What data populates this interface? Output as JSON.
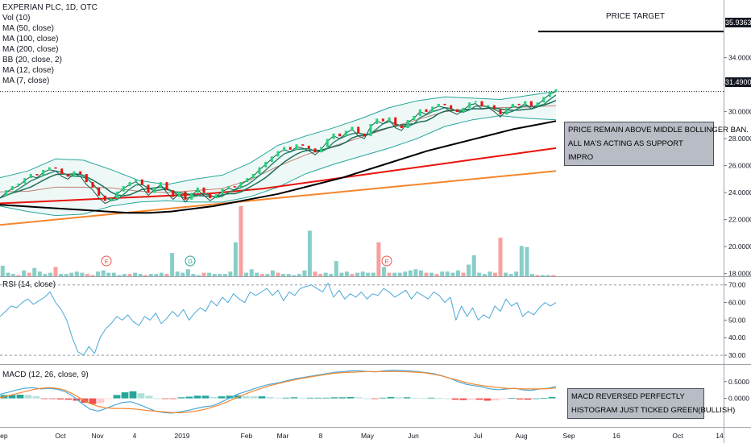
{
  "legend": {
    "title": "EXPERIAN PLC, 1D, OTC",
    "items": [
      "Vol (10)",
      "MA (50, close)",
      "MA (100, close)",
      "MA (200, close)",
      "BB (20, close, 2)",
      "MA (12, close)",
      "MA (7, close)"
    ]
  },
  "annotations": {
    "price_target_label": "PRICE TARGET",
    "main_note": [
      "PRICE REMAIN ABOVE MIDDLE BOLLINGER BAN.",
      "ALL MA'S ACTING AS SUPPORT",
      "IMPRO"
    ],
    "macd_note": [
      "MACD REVERSED PERFECTLY",
      "HISTOGRAM JUST TICKED GREEN(BULLISH)"
    ]
  },
  "price_tags": {
    "target": "35.9363",
    "last": "31.4900"
  },
  "colors": {
    "up": "#26a69a",
    "down": "#ef5350",
    "ma50": "#000000",
    "ma100": "#e8140c",
    "ma200": "#f5862d",
    "bb": "#26a69a",
    "ma12": "#1e6e5a",
    "ma7": "#b06060",
    "rsi": "#4aa8d8",
    "macd": "#4aa8d8",
    "signal": "#f5862d"
  },
  "chart_data": [
    {
      "type": "line",
      "name": "price",
      "x_ticks": [
        "Sep",
        "Oct",
        "Nov",
        "4",
        "2019",
        "Feb",
        "Mar",
        "8",
        "May",
        "Jun",
        "Jul",
        "Aug",
        "Sep",
        "16",
        "Oct",
        "14"
      ],
      "y_ticks": [
        "18.0000",
        "20.0000",
        "22.0000",
        "24.0000",
        "26.0000",
        "28.0000",
        "30.0000",
        "32.0000",
        "34.0000"
      ],
      "ylim": [
        17.8,
        37.2
      ],
      "close": [
        23.6,
        24.0,
        24.3,
        24.5,
        24.9,
        25.2,
        25.1,
        25.5,
        25.7,
        25.6,
        25.2,
        25.0,
        25.4,
        25.2,
        24.6,
        24.2,
        23.6,
        23.2,
        23.4,
        23.9,
        24.3,
        24.6,
        24.8,
        24.4,
        23.8,
        24.2,
        24.6,
        24.0,
        23.5,
        23.9,
        23.3,
        23.8,
        24.2,
        23.8,
        23.4,
        23.7,
        24.1,
        24.3,
        24.2,
        24.6,
        24.9,
        25.2,
        25.7,
        26.1,
        26.5,
        26.9,
        27.2,
        27.0,
        27.4,
        27.3,
        27.1,
        26.8,
        27.2,
        27.8,
        28.2,
        28.0,
        28.4,
        28.7,
        28.2,
        28.0,
        28.9,
        29.3,
        29.1,
        29.4,
        28.8,
        28.6,
        29.2,
        29.5,
        30.0,
        29.8,
        30.2,
        30.4,
        30.3,
        30.0,
        29.8,
        30.1,
        30.5,
        30.6,
        30.2,
        30.3,
        30.0,
        29.6,
        30.1,
        30.4,
        30.3,
        30.6,
        30.2,
        30.5,
        30.9,
        31.3,
        31.49
      ],
      "ma50": [
        23.1,
        23.0,
        22.9,
        22.8,
        22.7,
        22.6,
        22.5,
        22.5,
        22.6,
        22.8,
        23.0,
        23.3,
        23.6,
        23.9,
        24.3,
        24.7,
        25.1,
        25.6,
        26.1,
        26.6,
        27.1,
        27.5,
        27.9,
        28.3,
        28.7,
        29.0,
        29.3
      ],
      "ma100": [
        23.2,
        23.3,
        23.4,
        23.5,
        23.6,
        23.7,
        23.8,
        23.9,
        24.1,
        24.3,
        24.6,
        24.9,
        25.2,
        25.5,
        25.8,
        26.1,
        26.4,
        26.7,
        27.0,
        27.3
      ],
      "ma200": [
        21.6,
        21.8,
        22.0,
        22.2,
        22.4,
        22.6,
        22.8,
        23.0,
        23.2,
        23.4,
        23.6,
        23.8,
        24.0,
        24.2,
        24.4,
        24.6,
        24.8,
        25.0,
        25.2,
        25.4,
        25.6
      ],
      "bb_upper": [
        25.1,
        25.6,
        26.5,
        26.4,
        25.7,
        24.9,
        24.6,
        25.0,
        25.3,
        26.2,
        27.5,
        28.2,
        28.8,
        29.5,
        30.3,
        30.8,
        31.1,
        31.0,
        30.9,
        31.2,
        31.5
      ],
      "bb_lower": [
        23.0,
        22.6,
        22.3,
        22.4,
        23.0,
        23.3,
        23.4,
        23.3,
        23.3,
        23.7,
        24.4,
        25.4,
        26.1,
        26.7,
        27.3,
        28.0,
        28.9,
        29.4,
        29.7,
        29.5,
        29.4
      ]
    },
    {
      "type": "bar",
      "name": "volume",
      "values": [
        0.9,
        0.3,
        0.2,
        0.1,
        0.5,
        0.3,
        0.7,
        0.4,
        0.2,
        0.3,
        0.8,
        0.2,
        0.2,
        0.3,
        0.4,
        0.3,
        0.2,
        0.1,
        0.4,
        0.5,
        0.3,
        0.3,
        0.1,
        0.2,
        0.2,
        0.3,
        0.2,
        0.1,
        0.2,
        0.2,
        0.3,
        0.2,
        2.0,
        0.4,
        0.3,
        0.6,
        0.2,
        0.1,
        0.3,
        0.3,
        0.2,
        0.2,
        0.2,
        0.4,
        2.9,
        6.0,
        0.3,
        0.6,
        0.3,
        0.2,
        0.2,
        0.5,
        0.3,
        0.2,
        0.2,
        0.1,
        0.2,
        0.5,
        3.9,
        0.4,
        0.2,
        0.3,
        0.2,
        1.3,
        0.3,
        0.4,
        0.2,
        0.3,
        0.4,
        0.3,
        0.3,
        2.9,
        0.8,
        0.3,
        0.3,
        0.3,
        0.4,
        0.5,
        0.6,
        0.5,
        0.3,
        0.3,
        0.2,
        0.4,
        0.4,
        0.3,
        0.5,
        0.3,
        1.0,
        1.8,
        0.3,
        0.2,
        0.4,
        0.3,
        3.3,
        0.3,
        0.2,
        0.4,
        2.6,
        2.5,
        0.2,
        0.1,
        0.1,
        0.1,
        0.1
      ]
    },
    {
      "type": "line",
      "name": "RSI (14, close)",
      "label": "RSI (14, close)",
      "y_ticks": [
        "30.00",
        "40.00",
        "50.00",
        "60.00",
        "70.00"
      ],
      "ylim": [
        25,
        74
      ],
      "values": [
        52,
        55,
        58,
        57,
        60,
        62,
        59,
        61,
        63,
        66,
        60,
        56,
        50,
        40,
        32,
        30,
        35,
        31,
        40,
        45,
        48,
        52,
        50,
        53,
        49,
        47,
        52,
        50,
        54,
        48,
        51,
        55,
        52,
        56,
        50,
        54,
        57,
        55,
        61,
        58,
        63,
        60,
        65,
        62,
        60,
        66,
        64,
        66,
        68,
        64,
        67,
        61,
        66,
        64,
        68,
        69,
        70,
        68,
        66,
        71,
        63,
        67,
        62,
        65,
        63,
        66,
        62,
        65,
        64,
        68,
        66,
        63,
        65,
        67,
        62,
        66,
        64,
        62,
        66,
        64,
        60,
        63,
        50,
        58,
        52,
        57,
        50,
        53,
        51,
        58,
        55,
        62,
        58,
        60,
        52,
        55,
        53,
        57,
        60,
        58,
        60
      ]
    },
    {
      "type": "line",
      "name": "MACD (12, 26, close, 9)",
      "label": "MACD (12, 26, close, 9)",
      "y_ticks": [
        "0.0000",
        "0.5000"
      ],
      "ylim": [
        -0.85,
        0.95
      ],
      "macd": [
        0.12,
        0.18,
        0.25,
        0.3,
        0.32,
        0.28,
        0.3,
        0.27,
        0.2,
        0.05,
        -0.15,
        -0.32,
        -0.38,
        -0.3,
        -0.2,
        -0.12,
        -0.1,
        -0.18,
        -0.28,
        -0.38,
        -0.42,
        -0.44,
        -0.4,
        -0.36,
        -0.3,
        -0.25,
        -0.22,
        -0.12,
        0.0,
        0.12,
        0.2,
        0.28,
        0.36,
        0.42,
        0.46,
        0.52,
        0.58,
        0.62,
        0.66,
        0.7,
        0.74,
        0.78,
        0.8,
        0.82,
        0.82,
        0.8,
        0.79,
        0.82,
        0.84,
        0.83,
        0.82,
        0.8,
        0.77,
        0.74,
        0.68,
        0.6,
        0.5,
        0.42,
        0.38,
        0.34,
        0.28,
        0.26,
        0.28,
        0.3,
        0.25,
        0.24,
        0.28,
        0.3,
        0.35
      ],
      "signal": [
        0.02,
        0.08,
        0.14,
        0.2,
        0.26,
        0.3,
        0.32,
        0.3,
        0.24,
        0.12,
        -0.02,
        -0.15,
        -0.24,
        -0.28,
        -0.3,
        -0.3,
        -0.31,
        -0.33,
        -0.36,
        -0.38,
        -0.4,
        -0.42,
        -0.43,
        -0.41,
        -0.38,
        -0.33,
        -0.26,
        -0.18,
        -0.08,
        0.03,
        0.13,
        0.22,
        0.3,
        0.38,
        0.44,
        0.5,
        0.55,
        0.6,
        0.64,
        0.68,
        0.72,
        0.75,
        0.77,
        0.78,
        0.79,
        0.8,
        0.8,
        0.8,
        0.8,
        0.8,
        0.79,
        0.78,
        0.76,
        0.72,
        0.67,
        0.6,
        0.54,
        0.47,
        0.42,
        0.38,
        0.35,
        0.32,
        0.3,
        0.29,
        0.28,
        0.28,
        0.28,
        0.29,
        0.31
      ],
      "histogram": [
        0.1,
        0.1,
        0.11,
        0.1,
        0.06,
        -0.02,
        -0.02,
        -0.03,
        -0.04,
        -0.07,
        -0.13,
        -0.17,
        -0.14,
        -0.02,
        0.1,
        0.18,
        0.21,
        0.15,
        0.08,
        0.0,
        -0.02,
        -0.02,
        0.03,
        0.05,
        0.08,
        0.08,
        0.04,
        0.06,
        0.08,
        0.09,
        0.07,
        0.06,
        0.06,
        0.04,
        0.02,
        0.02,
        0.03,
        0.02,
        0.02,
        0.02,
        0.02,
        0.03,
        0.03,
        0.04,
        0.03,
        0.0,
        -0.01,
        0.02,
        0.04,
        0.03,
        0.03,
        0.02,
        0.01,
        0.02,
        0.01,
        0.0,
        -0.04,
        -0.05,
        -0.04,
        -0.04,
        -0.07,
        -0.06,
        -0.02,
        0.01,
        -0.03,
        -0.04,
        0.0,
        0.01,
        0.04
      ]
    }
  ]
}
